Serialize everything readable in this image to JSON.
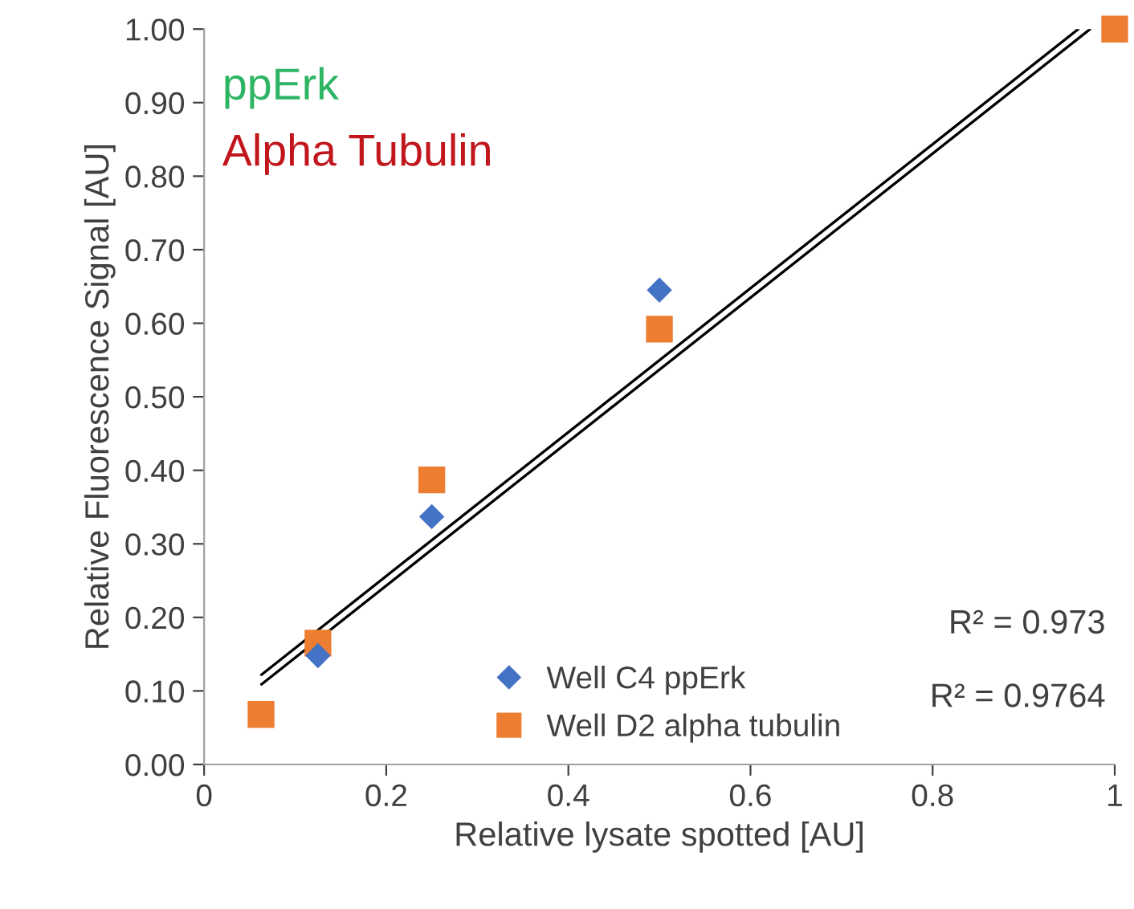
{
  "chart_data": {
    "type": "scatter",
    "xlabel": "Relative lysate spotted [AU]",
    "ylabel": "Relative Fluorescence Signal [AU]",
    "x": [
      0.0625,
      0.125,
      0.25,
      0.5,
      1
    ],
    "series": [
      {
        "name": "Well C4 ppErk",
        "color": "#4472c4",
        "marker": "diamond",
        "values": [
          null,
          0.148,
          0.337,
          0.645,
          null
        ]
      },
      {
        "name": "Well D2 alpha tubulin",
        "color": "#ed7d31",
        "marker": "square",
        "values": [
          0.068,
          0.165,
          0.387,
          0.592,
          1.0
        ]
      },
      {
        "type": "line",
        "color": "#000000",
        "x": [
          0.063,
          0.96
        ],
        "values": [
          0.122,
          1.0
        ]
      },
      {
        "type": "line",
        "color": "#000000",
        "x": [
          0.063,
          0.973
        ],
        "values": [
          0.109,
          1.0
        ]
      }
    ],
    "annotations": [
      "ppErk",
      "Alpha Tubulin",
      "R² = 0.973",
      "R² = 0.9764"
    ],
    "xlim": [
      0,
      1
    ],
    "xticks": [
      0,
      0.2,
      0.4,
      0.6,
      0.8,
      1
    ],
    "ylim": [
      0,
      1
    ],
    "yticks": [
      {
        "value": 0,
        "label": "0.00"
      },
      {
        "value": 0.1,
        "label": "0.10"
      },
      {
        "value": 0.2,
        "label": "0.20"
      },
      {
        "value": 0.3,
        "label": "0.30"
      },
      {
        "value": 0.4,
        "label": "0.40"
      },
      {
        "value": 0.5,
        "label": "0.50"
      },
      {
        "value": 0.6,
        "label": "0.60"
      },
      {
        "value": 0.7,
        "label": "0.70"
      },
      {
        "value": 0.8,
        "label": "0.80"
      },
      {
        "value": 0.9,
        "label": "0.90"
      },
      {
        "value": 1,
        "label": "1.00"
      }
    ],
    "legend": "bottom",
    "grid": false
  }
}
